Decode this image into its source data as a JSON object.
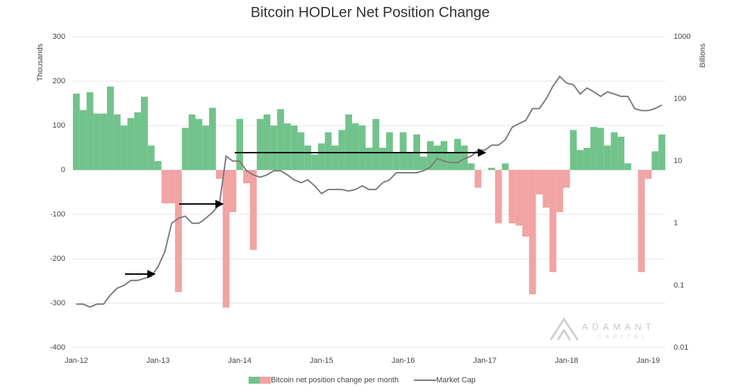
{
  "chart_data": {
    "type": "bar",
    "title": "Bitcoin HODLer Net Position Change",
    "y_label": "Thousands",
    "y2_label": "Billions",
    "watermark": "ADAMANT",
    "watermark_sub": "CAPITAL",
    "legend": "bottom",
    "grid": true,
    "y2_log": true,
    "ylim": [
      -400,
      300
    ],
    "yticks": [
      -400,
      -300,
      -200,
      -100,
      0,
      100,
      200,
      300
    ],
    "y2lim": [
      0.01,
      1000
    ],
    "y2ticks": [
      0.01,
      0.1,
      1,
      10,
      100,
      1000
    ],
    "categories": [
      "Jan-12",
      null,
      null,
      null,
      null,
      null,
      null,
      null,
      null,
      null,
      null,
      null,
      "Jan-13",
      null,
      null,
      null,
      null,
      null,
      null,
      null,
      null,
      null,
      null,
      null,
      "Jan-14",
      null,
      null,
      null,
      null,
      null,
      null,
      null,
      null,
      null,
      null,
      null,
      "Jan-15",
      null,
      null,
      null,
      null,
      null,
      null,
      null,
      null,
      null,
      null,
      null,
      "Jan-16",
      null,
      null,
      null,
      null,
      null,
      null,
      null,
      null,
      null,
      null,
      null,
      "Jan-17",
      null,
      null,
      null,
      null,
      null,
      null,
      null,
      null,
      null,
      null,
      null,
      "Jan-18",
      null,
      null,
      null,
      null,
      null,
      null,
      null,
      null,
      null,
      null,
      null,
      "Jan-19",
      null,
      null
    ],
    "series": [
      {
        "name": "Bitcoin net position change per month",
        "type": "bar",
        "color": "#72c38b",
        "negative_color": "#f2a3a3",
        "values": [
          172,
          135,
          175,
          127,
          127,
          188,
          125,
          100,
          117,
          130,
          165,
          55,
          20,
          -75,
          -75,
          -275,
          95,
          125,
          115,
          100,
          140,
          -20,
          -310,
          -95,
          115,
          -30,
          -180,
          115,
          125,
          100,
          137,
          105,
          100,
          85,
          55,
          35,
          60,
          85,
          55,
          90,
          125,
          105,
          100,
          50,
          115,
          50,
          85,
          40,
          85,
          40,
          80,
          30,
          65,
          55,
          65,
          40,
          70,
          55,
          15,
          -40,
          0,
          5,
          -120,
          15,
          -120,
          -125,
          -150,
          -280,
          -55,
          -85,
          -230,
          -95,
          -40,
          90,
          45,
          50,
          97,
          95,
          55,
          85,
          75,
          15,
          0,
          -230,
          -20,
          42,
          80
        ]
      },
      {
        "name": "Market Cap",
        "type": "line",
        "axis": "y2",
        "color": "#7a7a7a",
        "values": [
          0.05,
          0.05,
          0.045,
          0.05,
          0.05,
          0.07,
          0.09,
          0.1,
          0.12,
          0.12,
          0.13,
          0.14,
          0.2,
          0.35,
          1.0,
          1.2,
          1.3,
          1.0,
          1.0,
          1.2,
          1.5,
          2.0,
          12,
          10,
          10,
          7,
          6,
          5.5,
          6,
          7,
          7,
          6,
          5,
          4.5,
          5,
          4,
          3,
          3.5,
          3.5,
          3.5,
          3.3,
          3.5,
          4,
          3.5,
          3.5,
          4.5,
          5,
          6.5,
          6.5,
          6.5,
          6.5,
          7,
          8,
          11,
          10,
          9.5,
          9.5,
          11,
          12,
          15,
          15,
          18,
          18,
          22,
          35,
          40,
          45,
          70,
          70,
          100,
          160,
          230,
          180,
          170,
          120,
          150,
          130,
          110,
          130,
          120,
          110,
          110,
          70,
          65,
          65,
          70,
          80
        ]
      }
    ]
  }
}
